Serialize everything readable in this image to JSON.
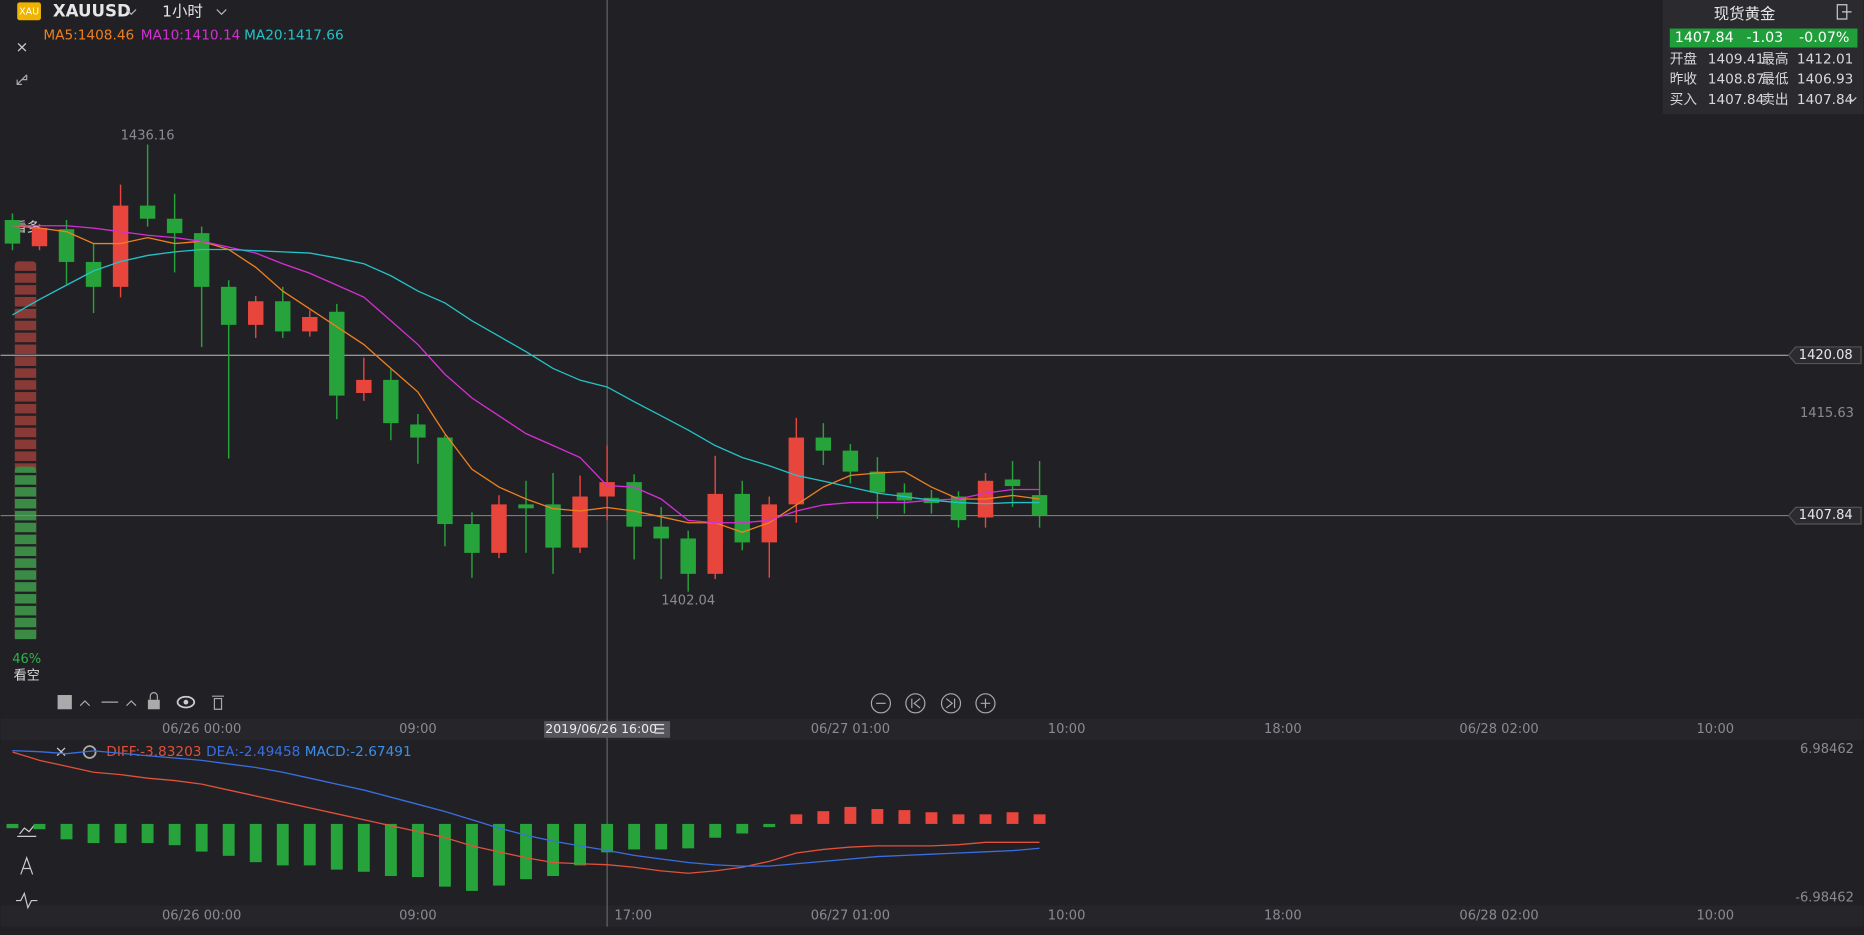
{
  "header": {
    "badge": "XAU",
    "symbol": "XAUUSD",
    "interval": "1小时"
  },
  "sentiment": {
    "top": "看多",
    "bottom": "看空",
    "value": 46,
    "value_label": "46%"
  },
  "quote_panel": {
    "title": "现货黄金",
    "last": "1407.84",
    "change": "-1.03",
    "change_pct": "-0.07%",
    "rows": [
      [
        "开盘",
        "1409.41",
        "最高",
        "1412.01"
      ],
      [
        "昨收",
        "1408.87",
        "最低",
        "1406.93"
      ],
      [
        "买入",
        "1407.84",
        "卖出",
        "1407.84"
      ]
    ]
  },
  "chart_data": [
    {
      "type": "candlestick",
      "up_color": "#e8453d",
      "down_color": "#27a33b",
      "open": [
        1430.4,
        1428.4,
        1429.7,
        1427.2,
        1425.3,
        1431.5,
        1430.5,
        1429.4,
        1425.3,
        1422.4,
        1424.2,
        1421.9,
        1423.4,
        1417.2,
        1418.2,
        1414.8,
        1413.8,
        1407.2,
        1405.0,
        1408.7,
        1408.7,
        1405.4,
        1409.3,
        1410.4,
        1407.0,
        1406.1,
        1403.4,
        1409.5,
        1405.8,
        1408.7,
        1413.8,
        1412.8,
        1411.2,
        1409.6,
        1409.2,
        1409.3,
        1407.7,
        1410.6,
        1409.41
      ],
      "high": [
        1430.9,
        1430.1,
        1430.4,
        1428.6,
        1433.1,
        1436.16,
        1432.4,
        1429.9,
        1425.8,
        1424.6,
        1425.3,
        1423.5,
        1424.0,
        1419.9,
        1419.0,
        1415.6,
        1414.0,
        1408.1,
        1409.4,
        1410.5,
        1411.1,
        1410.9,
        1413.2,
        1411.0,
        1408.5,
        1406.7,
        1412.4,
        1410.5,
        1409.3,
        1415.3,
        1414.9,
        1413.3,
        1412.3,
        1410.3,
        1409.8,
        1409.7,
        1411.1,
        1412.01,
        1412.01
      ],
      "low": [
        1428.1,
        1428.1,
        1425.5,
        1423.3,
        1424.5,
        1429.9,
        1426.4,
        1420.7,
        1412.2,
        1421.4,
        1421.4,
        1421.5,
        1415.2,
        1416.6,
        1413.6,
        1411.8,
        1405.5,
        1403.1,
        1404.6,
        1405.0,
        1403.4,
        1405.0,
        1407.5,
        1404.5,
        1403.0,
        1402.04,
        1403.0,
        1405.2,
        1403.1,
        1407.3,
        1411.7,
        1410.3,
        1407.6,
        1408.0,
        1408.0,
        1406.93,
        1406.93,
        1408.5,
        1406.93
      ],
      "close": [
        1428.6,
        1429.8,
        1427.2,
        1425.3,
        1431.5,
        1430.5,
        1429.4,
        1425.3,
        1422.4,
        1424.2,
        1421.9,
        1423.0,
        1417.0,
        1418.2,
        1414.9,
        1413.8,
        1407.2,
        1405.0,
        1408.7,
        1408.4,
        1405.4,
        1409.3,
        1410.4,
        1407.0,
        1406.1,
        1403.4,
        1409.5,
        1405.8,
        1408.7,
        1413.8,
        1412.8,
        1411.2,
        1409.6,
        1409.0,
        1408.8,
        1407.5,
        1410.5,
        1410.1,
        1407.84
      ],
      "series": [
        {
          "label": "MA5:1408.46",
          "color": "#f07f1e",
          "values": [
            1429.96,
            1429.78,
            1429.51,
            1428.6,
            1428.6,
            1429.06,
            1428.6,
            1428.78,
            1428.15,
            1426.79,
            1424.98,
            1423.62,
            1422.26,
            1420.9,
            1419.08,
            1417.27,
            1414.1,
            1411.38,
            1410.02,
            1409.11,
            1408.38,
            1408.2,
            1408.46,
            1408.2,
            1407.75,
            1407.3,
            1407.3,
            1406.57,
            1407.3,
            1408.66,
            1410.02,
            1410.92,
            1411.1,
            1411.2,
            1410.02,
            1409.11,
            1409.11,
            1409.38,
            1409.11
          ]
        },
        {
          "label": "MA10:1410.14",
          "color": "#d42fd4",
          "values": [
            1429.96,
            1429.96,
            1429.96,
            1429.78,
            1429.51,
            1429.24,
            1429.06,
            1428.78,
            1428.33,
            1427.88,
            1427.06,
            1426.34,
            1425.43,
            1424.52,
            1422.71,
            1420.9,
            1418.63,
            1416.82,
            1415.46,
            1414.1,
            1413.19,
            1412.28,
            1410.14,
            1410.02,
            1409.11,
            1407.48,
            1407.3,
            1407.3,
            1407.48,
            1408.2,
            1408.66,
            1408.84,
            1408.84,
            1408.84,
            1409.02,
            1409.11,
            1409.56,
            1409.84,
            1409.84
          ]
        },
        {
          "label": "MA20:1417.66",
          "color": "#24c2c8",
          "values": [
            1423.16,
            1424.34,
            1425.43,
            1426.52,
            1427.24,
            1427.7,
            1427.97,
            1428.15,
            1428.15,
            1428.06,
            1427.97,
            1427.88,
            1427.51,
            1427.06,
            1426.15,
            1424.98,
            1424.07,
            1422.71,
            1421.53,
            1420.35,
            1419.08,
            1418.18,
            1417.66,
            1416.54,
            1415.46,
            1414.37,
            1413.19,
            1412.28,
            1411.65,
            1410.92,
            1410.47,
            1410.02,
            1409.56,
            1409.29,
            1409.02,
            1408.84,
            1408.75,
            1408.84,
            1408.84
          ]
        }
      ],
      "annotations": [
        {
          "x": 5,
          "value": 1436.16
        },
        {
          "x": 25,
          "value": 1402.04
        }
      ],
      "xlim": [
        -0.44,
        68.48
      ],
      "xticks": [
        {
          "value": 7,
          "label": "06/26 00:00"
        },
        {
          "value": 15,
          "label": "09:00"
        },
        {
          "value": 31,
          "label": "06/27 01:00"
        },
        {
          "value": 39,
          "label": "10:00"
        },
        {
          "value": 47,
          "label": "18:00"
        },
        {
          "value": 55,
          "label": "06/28 02:00"
        },
        {
          "value": 63,
          "label": "10:00"
        }
      ],
      "ylim": [
        1392.34,
        1447.19
      ],
      "yticks": [
        1415.63
      ],
      "crosshair": {
        "x": 22,
        "price": 1420.08,
        "label": "2019/06/26 16:00",
        "lower_label": "17:00"
      },
      "last_price": 1407.84
    },
    {
      "type": "macd",
      "up_color": "#e8453d",
      "down_color": "#27a33b",
      "legend_label": "MACD:-2.67491",
      "legend_color": "#3d8ee8",
      "values": [
        -0.4,
        -0.5,
        -1.45,
        -1.8,
        -1.8,
        -1.8,
        -2.0,
        -2.6,
        -3.0,
        -3.6,
        -3.9,
        -3.9,
        -4.3,
        -4.5,
        -4.9,
        -5.0,
        -5.9,
        -6.3,
        -5.8,
        -5.2,
        -4.9,
        -3.9,
        -2.67491,
        -2.4,
        -2.4,
        -2.3,
        -1.3,
        -0.9,
        -0.3,
        0.9,
        1.2,
        1.6,
        1.4,
        1.3,
        1.1,
        0.9,
        0.9,
        1.1,
        0.9
      ],
      "series": [
        {
          "label": "DIFF:-3.83203",
          "color": "#e0503a",
          "values": [
            6.76,
            5.98,
            5.42,
            4.86,
            4.64,
            4.3,
            4.08,
            3.74,
            3.18,
            2.63,
            2.07,
            1.51,
            0.95,
            0.39,
            -0.17,
            -0.73,
            -1.28,
            -2.07,
            -2.63,
            -3.18,
            -3.63,
            -3.74,
            -3.83203,
            -4.08,
            -4.41,
            -4.64,
            -4.41,
            -4.08,
            -3.52,
            -2.74,
            -2.4,
            -2.18,
            -2.07,
            -2.07,
            -2.07,
            -1.96,
            -1.73,
            -1.73,
            -1.73
          ]
        },
        {
          "label": "DEA:-2.49458",
          "color": "#3a6ee0",
          "values": [
            6.9,
            6.8,
            6.6,
            6.87,
            6.65,
            6.42,
            6.2,
            5.98,
            5.64,
            5.31,
            4.86,
            4.3,
            3.74,
            3.18,
            2.51,
            1.84,
            1.17,
            0.39,
            -0.39,
            -1.06,
            -1.62,
            -2.07,
            -2.49458,
            -2.96,
            -3.3,
            -3.63,
            -3.85,
            -3.97,
            -3.97,
            -3.74,
            -3.52,
            -3.3,
            -3.07,
            -2.96,
            -2.85,
            -2.74,
            -2.63,
            -2.51,
            -2.29
          ]
        }
      ],
      "xlim": [
        -0.44,
        68.48
      ],
      "ylim": [
        -6.98462,
        6.98462
      ],
      "yticks": [
        6.98462,
        -6.98462
      ]
    }
  ]
}
